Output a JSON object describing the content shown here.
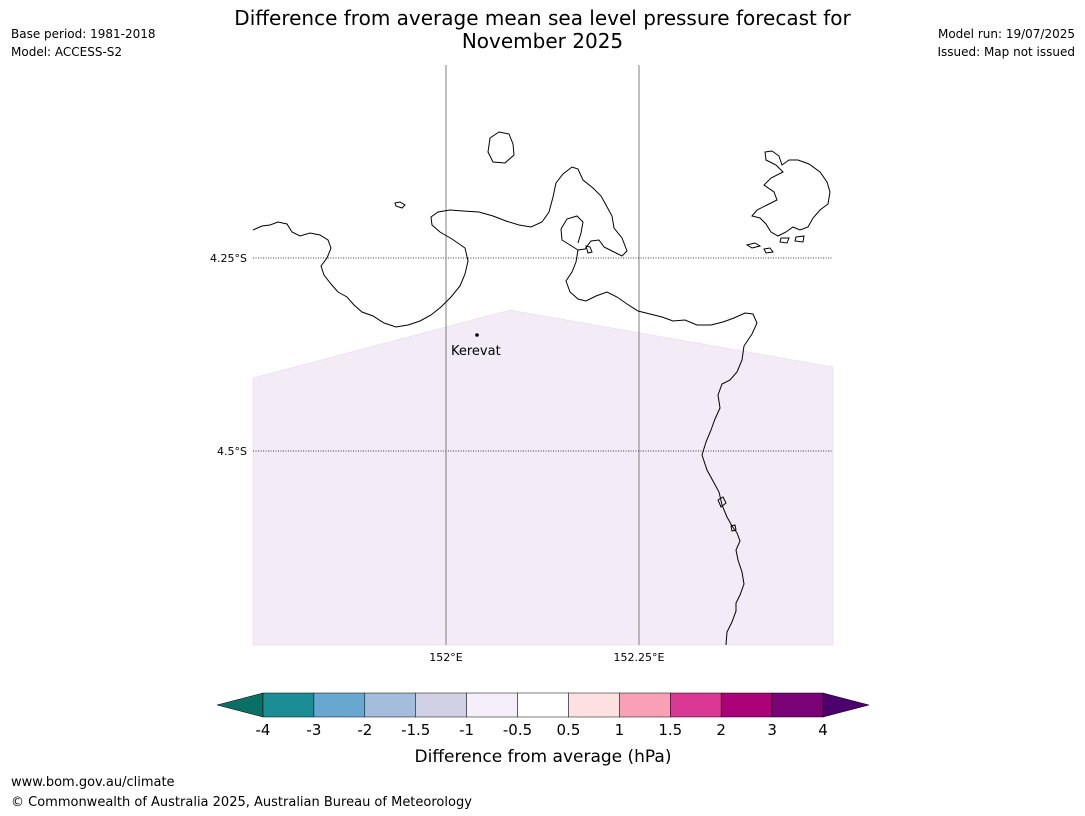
{
  "header": {
    "title_line1": "Difference from average mean sea level pressure forecast for",
    "title_line2": "November 2025",
    "base_period": "Base period: 1981-2018",
    "model": "Model: ACCESS-S2",
    "model_run": "Model run: 19/07/2025",
    "issued": "Issued: Map not issued"
  },
  "map": {
    "lat_labels": [
      "4.25°S",
      "4.5°S"
    ],
    "lon_labels": [
      "152°E",
      "152.25°E"
    ],
    "place": {
      "name": "Kerevat"
    },
    "anomaly_fill_color": "#f3ebf5",
    "anomaly_value_range": [
      -1,
      -0.5
    ]
  },
  "colorbar": {
    "ticks": [
      "-4",
      "-3",
      "-2",
      "-1.5",
      "-1",
      "-0.5",
      "0.5",
      "1",
      "1.5",
      "2",
      "3",
      "4"
    ],
    "colors": [
      "#1a8e94",
      "#68a8d0",
      "#a6bcdc",
      "#d2d0e4",
      "#f6eef8",
      "#ffffff",
      "#fde0e0",
      "#f8a0b6",
      "#da3694",
      "#ab0279",
      "#7c0277"
    ],
    "under_color": "#0a6f64",
    "over_color": "#4b006b",
    "label": "Difference from average (hPa)"
  },
  "footer": {
    "url": "www.bom.gov.au/climate",
    "copyright": "© Commonwealth of Australia 2025, Australian Bureau of Meteorology"
  }
}
